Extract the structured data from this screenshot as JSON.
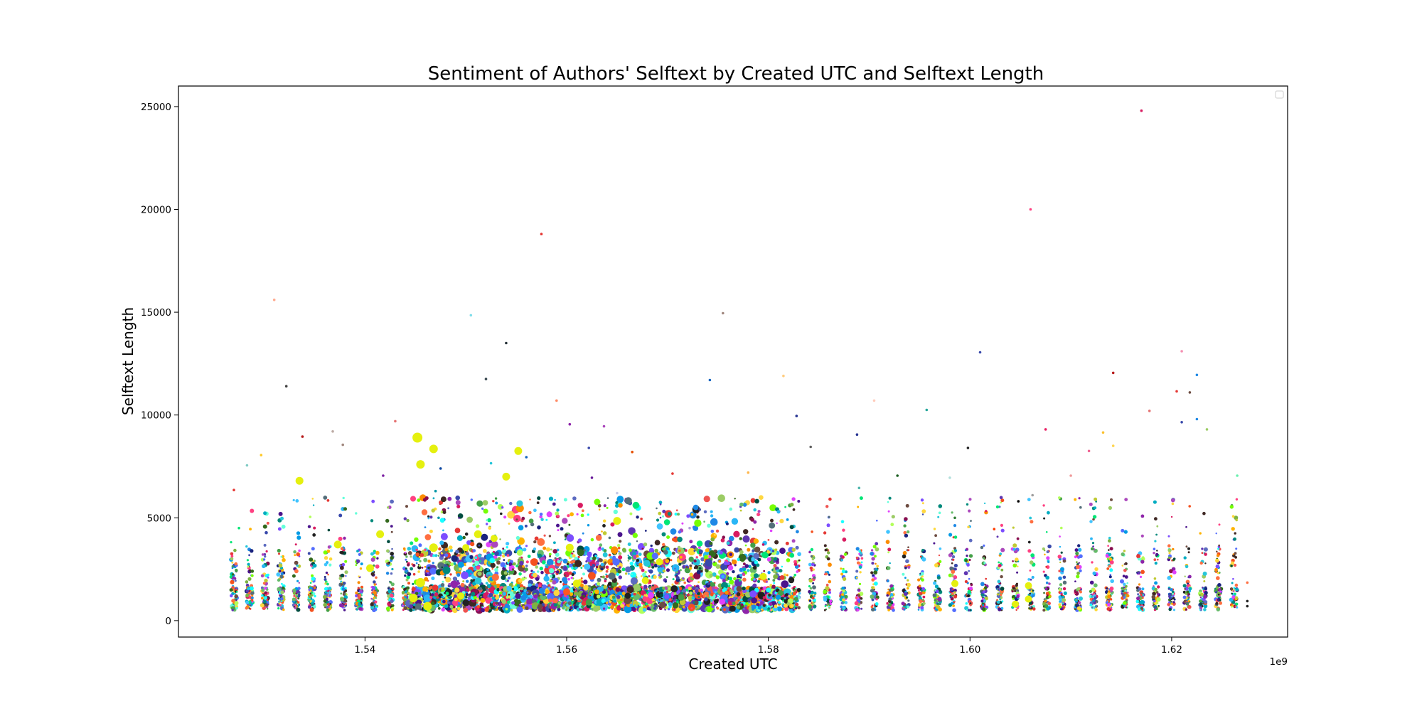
{
  "chart_data": {
    "type": "scatter",
    "title": "Sentiment of Authors' Selftext by Created UTC and Selftext Length",
    "xlabel": "Created UTC",
    "ylabel": "Selftext Length",
    "x_offset_text": "1e9",
    "xlim": [
      1.5215,
      1.6315
    ],
    "ylim": [
      -800,
      26000
    ],
    "x_ticks": [
      1.54,
      1.56,
      1.58,
      1.6,
      1.62
    ],
    "x_tick_labels": [
      "1.54",
      "1.56",
      "1.58",
      "1.60",
      "1.62"
    ],
    "y_ticks": [
      0,
      5000,
      10000,
      15000,
      20000,
      25000
    ],
    "y_tick_labels": [
      "0",
      "5000",
      "10000",
      "15000",
      "20000",
      "25000"
    ],
    "grid": false,
    "legend": "top-right",
    "highlight_color": "#e5f00f",
    "notable_points": [
      {
        "x": 1.617,
        "y": 24800,
        "color": "#d81b60"
      },
      {
        "x": 1.606,
        "y": 20000,
        "color": "#ff4081"
      },
      {
        "x": 1.5575,
        "y": 18800,
        "color": "#e53935"
      },
      {
        "x": 1.531,
        "y": 15600,
        "color": "#ffab91"
      },
      {
        "x": 1.5755,
        "y": 14950,
        "color": "#a1887f"
      },
      {
        "x": 1.5505,
        "y": 14850,
        "color": "#80deea"
      },
      {
        "x": 1.554,
        "y": 13500,
        "color": "#263238"
      },
      {
        "x": 1.621,
        "y": 13100,
        "color": "#f48fb1"
      },
      {
        "x": 1.601,
        "y": 13050,
        "color": "#3949ab"
      },
      {
        "x": 1.6142,
        "y": 12050,
        "color": "#b71c1c"
      },
      {
        "x": 1.6225,
        "y": 11950,
        "color": "#1e88e5"
      },
      {
        "x": 1.5815,
        "y": 11900,
        "color": "#ffcc80"
      },
      {
        "x": 1.552,
        "y": 11750,
        "color": "#37474f"
      },
      {
        "x": 1.5742,
        "y": 11700,
        "color": "#1565c0"
      },
      {
        "x": 1.5322,
        "y": 11400,
        "color": "#424242"
      },
      {
        "x": 1.6205,
        "y": 11150,
        "color": "#e53935"
      },
      {
        "x": 1.6218,
        "y": 11100,
        "color": "#6d4c41"
      },
      {
        "x": 1.559,
        "y": 10700,
        "color": "#ff8a65"
      },
      {
        "x": 1.5905,
        "y": 10700,
        "color": "#ffccbc"
      },
      {
        "x": 1.5957,
        "y": 10250,
        "color": "#26a69a"
      },
      {
        "x": 1.6178,
        "y": 10200,
        "color": "#e57373"
      },
      {
        "x": 1.5828,
        "y": 9950,
        "color": "#283593"
      },
      {
        "x": 1.6225,
        "y": 9800,
        "color": "#1e88e5"
      },
      {
        "x": 1.621,
        "y": 9650,
        "color": "#3949ab"
      },
      {
        "x": 1.543,
        "y": 9700,
        "color": "#e57373"
      },
      {
        "x": 1.5603,
        "y": 9550,
        "color": "#8e24aa"
      },
      {
        "x": 1.5637,
        "y": 9450,
        "color": "#ab47bc"
      },
      {
        "x": 1.5368,
        "y": 9200,
        "color": "#bcaaa4"
      },
      {
        "x": 1.6075,
        "y": 9300,
        "color": "#e91e63"
      },
      {
        "x": 1.6132,
        "y": 9150,
        "color": "#fbc02d"
      },
      {
        "x": 1.5888,
        "y": 9050,
        "color": "#283593"
      },
      {
        "x": 1.5338,
        "y": 8950,
        "color": "#b71c1c"
      },
      {
        "x": 1.6235,
        "y": 9300,
        "color": "#9ccc65"
      },
      {
        "x": 1.5378,
        "y": 8550,
        "color": "#a1887f"
      },
      {
        "x": 1.5622,
        "y": 8400,
        "color": "#3949ab"
      },
      {
        "x": 1.5842,
        "y": 8450,
        "color": "#616161"
      },
      {
        "x": 1.5998,
        "y": 8400,
        "color": "#212121"
      },
      {
        "x": 1.6142,
        "y": 8500,
        "color": "#ffd54f"
      },
      {
        "x": 1.6118,
        "y": 8250,
        "color": "#f06292"
      },
      {
        "x": 1.5297,
        "y": 8050,
        "color": "#ffca28"
      },
      {
        "x": 1.5665,
        "y": 8200,
        "color": "#e65100"
      },
      {
        "x": 1.556,
        "y": 7950,
        "color": "#1565c0"
      },
      {
        "x": 1.5283,
        "y": 7550,
        "color": "#80cbc4"
      },
      {
        "x": 1.5418,
        "y": 7050,
        "color": "#7b1fa2"
      },
      {
        "x": 1.5525,
        "y": 7650,
        "color": "#26c6da"
      },
      {
        "x": 1.5705,
        "y": 7150,
        "color": "#e53935"
      },
      {
        "x": 1.578,
        "y": 7200,
        "color": "#ffb74d"
      },
      {
        "x": 1.5928,
        "y": 7050,
        "color": "#1b5e20"
      },
      {
        "x": 1.61,
        "y": 7050,
        "color": "#ef9a9a"
      },
      {
        "x": 1.6265,
        "y": 7050,
        "color": "#69f0ae"
      },
      {
        "x": 1.5625,
        "y": 6950,
        "color": "#6a1b9a"
      },
      {
        "x": 1.598,
        "y": 6950,
        "color": "#b2dfdb"
      },
      {
        "x": 1.589,
        "y": 6450,
        "color": "#4db6ac"
      },
      {
        "x": 1.527,
        "y": 6350,
        "color": "#e53935"
      },
      {
        "x": 1.565,
        "y": 6200,
        "color": "#c5cae9"
      },
      {
        "x": 1.5732,
        "y": 5400,
        "color": "#3949ab"
      },
      {
        "x": 1.5985,
        "y": 5000,
        "color": "#2e7d32"
      },
      {
        "x": 1.6048,
        "y": 5800,
        "color": "#000000"
      },
      {
        "x": 1.6062,
        "y": 6100,
        "color": "#9e9e9e"
      },
      {
        "x": 1.5275,
        "y": 4500,
        "color": "#00e676"
      },
      {
        "x": 1.6024,
        "y": 4450,
        "color": "#ff3d00"
      },
      {
        "x": 1.5795,
        "y": 3700,
        "color": "#c51162"
      },
      {
        "x": 1.548,
        "y": 3000,
        "color": "#4e342e"
      },
      {
        "x": 1.5712,
        "y": 3400,
        "color": "#ff6f00"
      },
      {
        "x": 1.5722,
        "y": 4500,
        "color": "#b39ddb"
      },
      {
        "x": 1.5475,
        "y": 7400,
        "color": "#0d47a1"
      },
      {
        "x": 1.547,
        "y": 6300,
        "color": "#0097a7"
      },
      {
        "x": 1.5473,
        "y": 5000,
        "color": "#0097a7"
      },
      {
        "x": 1.5335,
        "y": 6800,
        "color": "#e5f00f",
        "size": 11
      },
      {
        "x": 1.5452,
        "y": 8900,
        "color": "#e5f00f",
        "size": 14
      },
      {
        "x": 1.5468,
        "y": 8350,
        "color": "#e5f00f",
        "size": 12
      },
      {
        "x": 1.5455,
        "y": 7600,
        "color": "#e5f00f",
        "size": 12
      },
      {
        "x": 1.5552,
        "y": 8250,
        "color": "#e5f00f",
        "size": 11
      },
      {
        "x": 1.554,
        "y": 7000,
        "color": "#e5f00f",
        "size": 11
      },
      {
        "x": 1.565,
        "y": 4850,
        "color": "#e5f00f",
        "size": 11
      },
      {
        "x": 1.5373,
        "y": 3700,
        "color": "#e5f00f",
        "size": 11
      },
      {
        "x": 1.5415,
        "y": 4200,
        "color": "#e5f00f",
        "size": 11
      },
      {
        "x": 1.5405,
        "y": 2550,
        "color": "#e5f00f",
        "size": 11
      },
      {
        "x": 1.5468,
        "y": 3550,
        "color": "#e5f00f",
        "size": 12
      },
      {
        "x": 1.5512,
        "y": 4200,
        "color": "#e5f00f",
        "size": 11
      },
      {
        "x": 1.55,
        "y": 3550,
        "color": "#e5f00f",
        "size": 10
      },
      {
        "x": 1.5528,
        "y": 4000,
        "color": "#e5f00f",
        "size": 10
      },
      {
        "x": 1.5455,
        "y": 1850,
        "color": "#e5f00f",
        "size": 13
      },
      {
        "x": 1.5448,
        "y": 1100,
        "color": "#e5f00f",
        "size": 12
      },
      {
        "x": 1.5462,
        "y": 700,
        "color": "#e5f00f",
        "size": 12
      },
      {
        "x": 1.5603,
        "y": 3550,
        "color": "#e5f00f",
        "size": 11
      },
      {
        "x": 1.561,
        "y": 1800,
        "color": "#e5f00f",
        "size": 11
      },
      {
        "x": 1.5692,
        "y": 2850,
        "color": "#e5f00f",
        "size": 10
      },
      {
        "x": 1.5678,
        "y": 1950,
        "color": "#e5f00f",
        "size": 10
      },
      {
        "x": 1.5795,
        "y": 2150,
        "color": "#e5f00f",
        "size": 10
      },
      {
        "x": 1.5985,
        "y": 1800,
        "color": "#e5f00f",
        "size": 10
      },
      {
        "x": 1.6058,
        "y": 1700,
        "color": "#e5f00f",
        "size": 10
      },
      {
        "x": 1.6058,
        "y": 1050,
        "color": "#e5f00f",
        "size": 10
      },
      {
        "x": 1.6045,
        "y": 800,
        "color": "#e5f00f",
        "size": 10
      },
      {
        "x": 1.5495,
        "y": 1200,
        "color": "#e5f00f",
        "size": 10
      },
      {
        "x": 1.56,
        "y": 1400,
        "color": "#ff5722",
        "size": 10
      }
    ],
    "strip_columns": {
      "x_start": 1.527,
      "x_end": 1.6265,
      "step": 0.00155,
      "dense_region": [
        1.5455,
        1.582
      ],
      "typical_range": [
        500,
        3500
      ],
      "tail_max": 6000,
      "last_points": [
        {
          "x": 1.6275,
          "y": 950,
          "color": "#212121"
        },
        {
          "x": 1.6275,
          "y": 700,
          "color": "#212121"
        },
        {
          "x": 1.6275,
          "y": 1850,
          "color": "#ff7043"
        }
      ]
    }
  }
}
